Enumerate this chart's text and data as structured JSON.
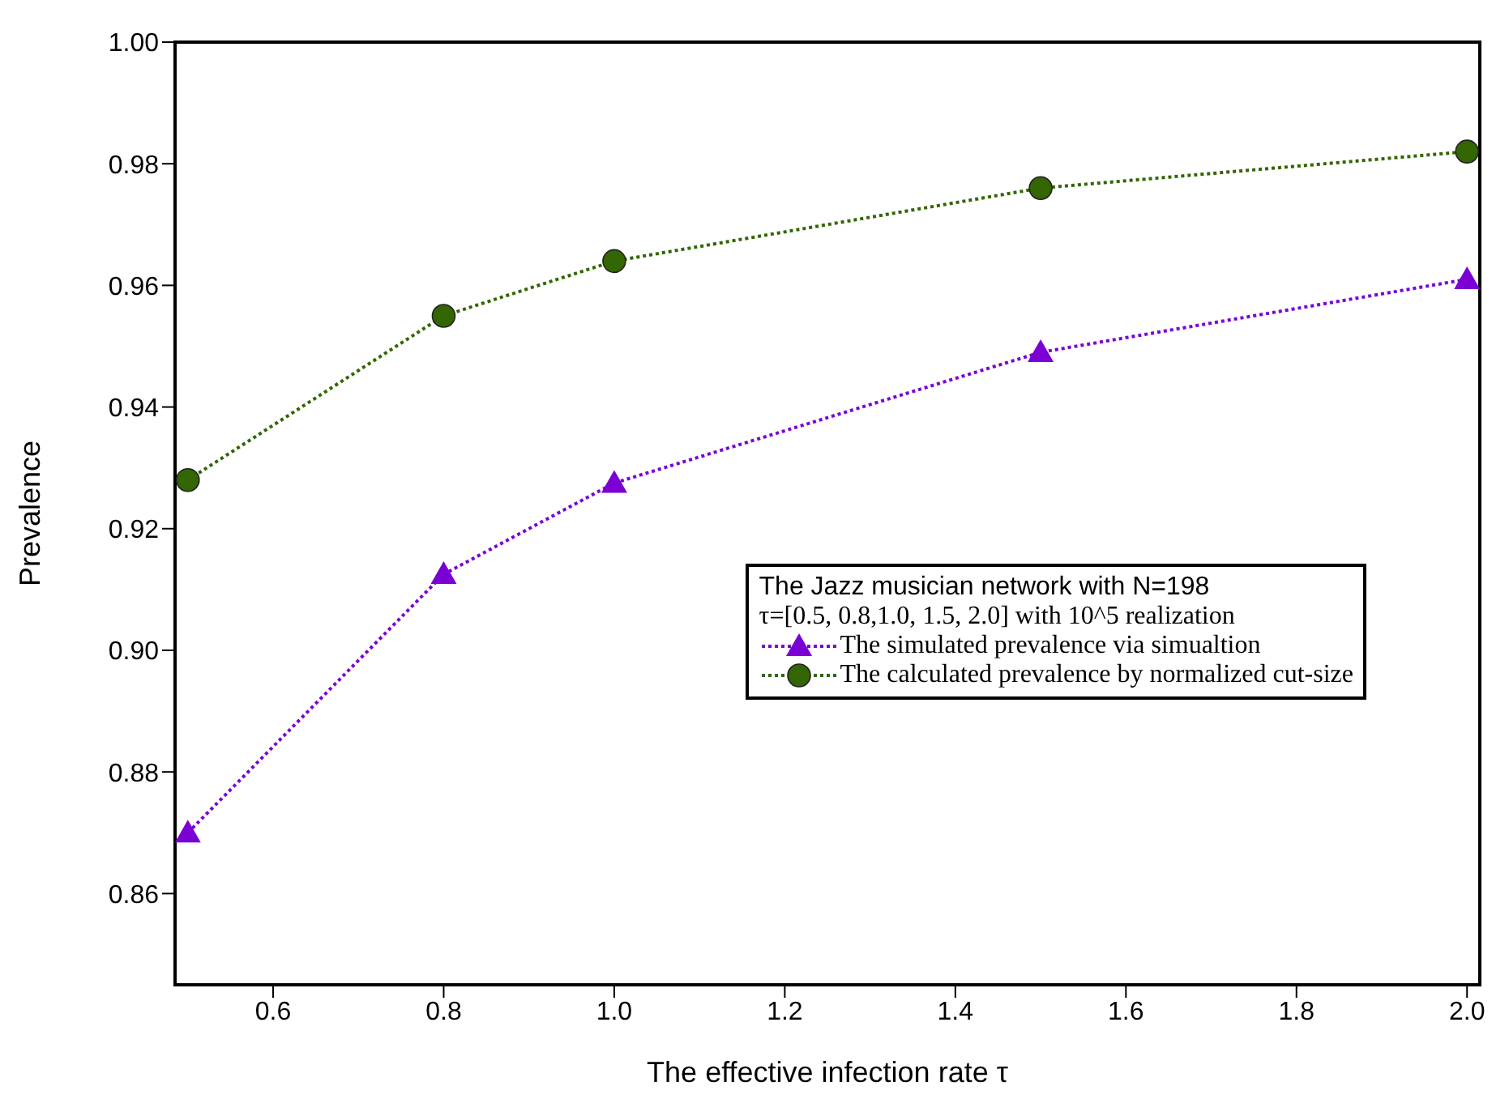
{
  "chart_data": {
    "type": "line",
    "xlabel": "The effective infection rate  τ",
    "ylabel": "Prevalence",
    "legend_title": "The Jazz musician network with N=198",
    "annotations": [
      "τ=[0.5, 0.8,1.0, 1.5, 2.0]  with 10^5 realization"
    ],
    "x": [
      0.5,
      0.8,
      1.0,
      1.5,
      2.0
    ],
    "series": [
      {
        "name": "The simulated prevalence via simualtion",
        "color": "#7b00d4",
        "marker": "triangle",
        "values": [
          0.87,
          0.9125,
          0.9275,
          0.949,
          0.961
        ]
      },
      {
        "name": "The calculated prevalence by normalized cut-size",
        "color": "#336600",
        "marker": "circle",
        "values": [
          0.928,
          0.955,
          0.964,
          0.976,
          0.982
        ]
      }
    ],
    "xlim": [
      0.485,
      2.015
    ],
    "xticks": [
      0.6,
      0.8,
      {
        "value": 1.0,
        "label": "1.0"
      },
      1.2,
      1.4,
      1.6,
      1.8,
      {
        "value": 2.0,
        "label": "2.0"
      }
    ],
    "ylim": [
      0.845,
      1.0
    ],
    "yticks": [
      0.86,
      0.88,
      {
        "value": 0.9,
        "label": "0.90"
      },
      0.92,
      0.94,
      0.96,
      0.98,
      {
        "value": 1.0,
        "label": "1.00"
      }
    ],
    "grid": false,
    "legend": "right",
    "line_style": "dotted"
  }
}
